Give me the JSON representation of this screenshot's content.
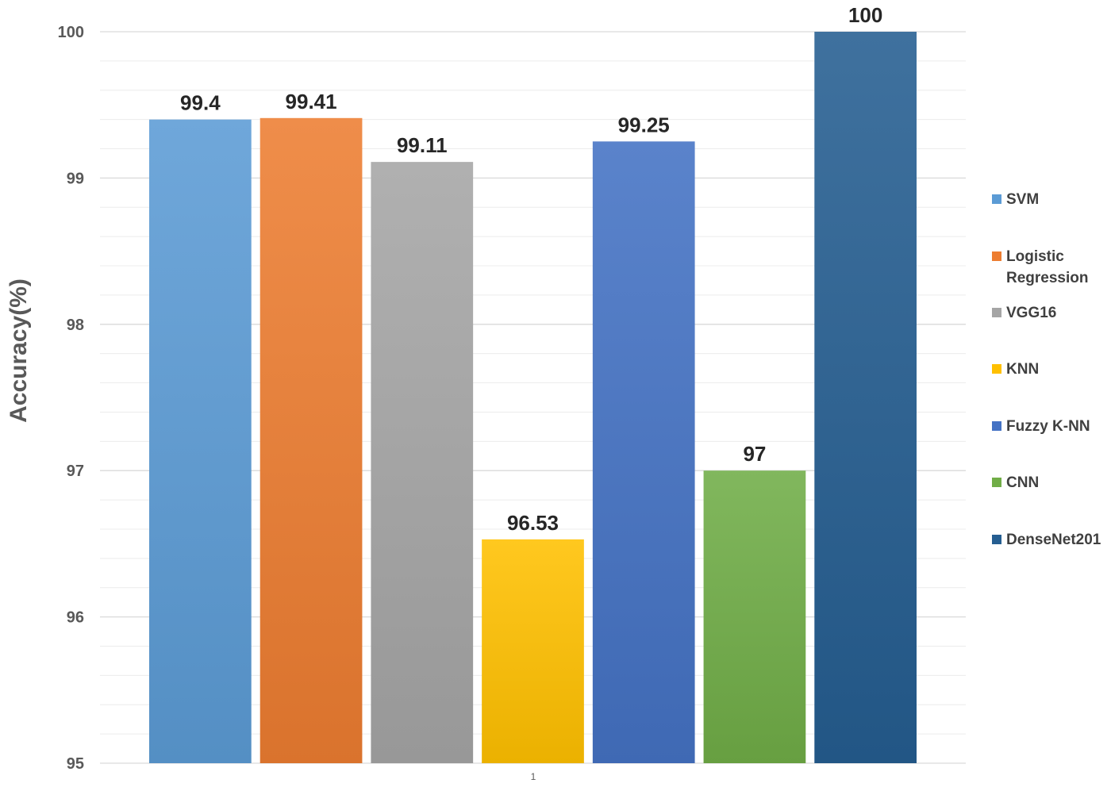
{
  "chart_data": {
    "type": "bar",
    "categories": [
      "1"
    ],
    "ylabel": "Accuracy(%)",
    "xlabel": "",
    "ylim": [
      95,
      100
    ],
    "yticks": [
      95,
      96,
      97,
      98,
      99,
      100
    ],
    "grid": true,
    "legend_position": "right",
    "series": [
      {
        "name": "SVM",
        "values": [
          99.4
        ],
        "color": "#5b9bd5",
        "value_label": "99.4"
      },
      {
        "name": "Logistic Regression",
        "values": [
          99.41
        ],
        "color": "#ed7d31",
        "value_label": "99.41"
      },
      {
        "name": "VGG16",
        "values": [
          99.11
        ],
        "color": "#a5a5a5",
        "value_label": "99.11"
      },
      {
        "name": "KNN",
        "values": [
          96.53
        ],
        "color": "#ffc000",
        "value_label": "96.53"
      },
      {
        "name": "Fuzzy K-NN",
        "values": [
          99.25
        ],
        "color": "#4472c4",
        "value_label": "99.25"
      },
      {
        "name": "CNN",
        "values": [
          97
        ],
        "color": "#70ad47",
        "value_label": "97"
      },
      {
        "name": "DenseNet201",
        "values": [
          100
        ],
        "color": "#255e91",
        "value_label": "100"
      }
    ]
  }
}
